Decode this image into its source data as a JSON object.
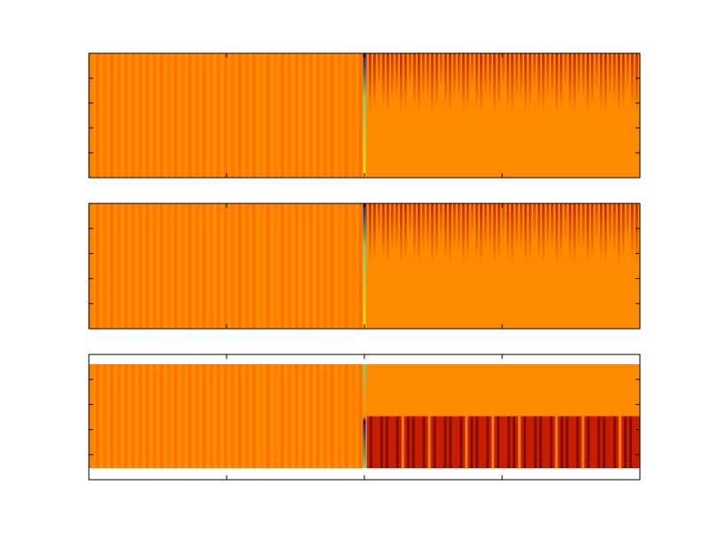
{
  "figure": {
    "background": "#ffffff",
    "axis_color": "#000000"
  },
  "chart_data": [
    {
      "type": "heatmap",
      "title": "",
      "xlabel": "",
      "ylabel": "",
      "x_tick_count": 5,
      "y_tick_count": 6,
      "tick_labels_shown": false,
      "grid": false,
      "rows": [
        {
          "pattern": "stationary-stripes",
          "level": 0.6,
          "split_fraction": 0.5,
          "transition_colors": [
            "#1b1b80",
            "#7fd17a",
            "#ffd400"
          ]
        },
        {
          "pattern": "decaying-transient",
          "level": 0.6,
          "split_fraction": 0.5
        }
      ],
      "colors": {
        "base": "#ff8c00",
        "stripe": "#ff6a00",
        "hot": "#c81e00",
        "cold": "#1b1b80",
        "mid": "#7fd17a",
        "bright": "#ffd400"
      }
    },
    {
      "type": "heatmap",
      "title": "",
      "xlabel": "",
      "ylabel": "",
      "x_tick_count": 5,
      "y_tick_count": 6,
      "tick_labels_shown": false,
      "grid": false,
      "rows": [
        {
          "pattern": "stationary-stripes",
          "level": 0.6,
          "split_fraction": 0.5,
          "transition_colors": [
            "#1b1b80",
            "#7fd17a",
            "#ffd400"
          ]
        },
        {
          "pattern": "decaying-transient",
          "level": 0.6,
          "split_fraction": 0.5
        }
      ],
      "colors": {
        "base": "#ff8c00",
        "stripe": "#ff6a00",
        "hot": "#c81e00",
        "cold": "#1b1b80",
        "mid": "#7fd17a",
        "bright": "#ffd400"
      }
    },
    {
      "type": "heatmap",
      "title": "",
      "xlabel": "",
      "ylabel": "",
      "x_tick_count": 5,
      "y_tick_count": 6,
      "tick_labels_shown": false,
      "grid": false,
      "ylim_padding": true,
      "bands": [
        {
          "band": "upper",
          "left_pattern": "stationary-stripes",
          "right_pattern": "smooth-orange"
        },
        {
          "band": "lower",
          "left_pattern": "stationary-stripes",
          "right_pattern": "strong-dark-stripes"
        }
      ],
      "colors": {
        "base": "#ff8c00",
        "stripe": "#ff6a00",
        "hot": "#c81e00",
        "dark": "#7a0a00",
        "cold": "#1b1b80",
        "mid": "#7fd17a",
        "bright": "#ffd400"
      }
    }
  ]
}
